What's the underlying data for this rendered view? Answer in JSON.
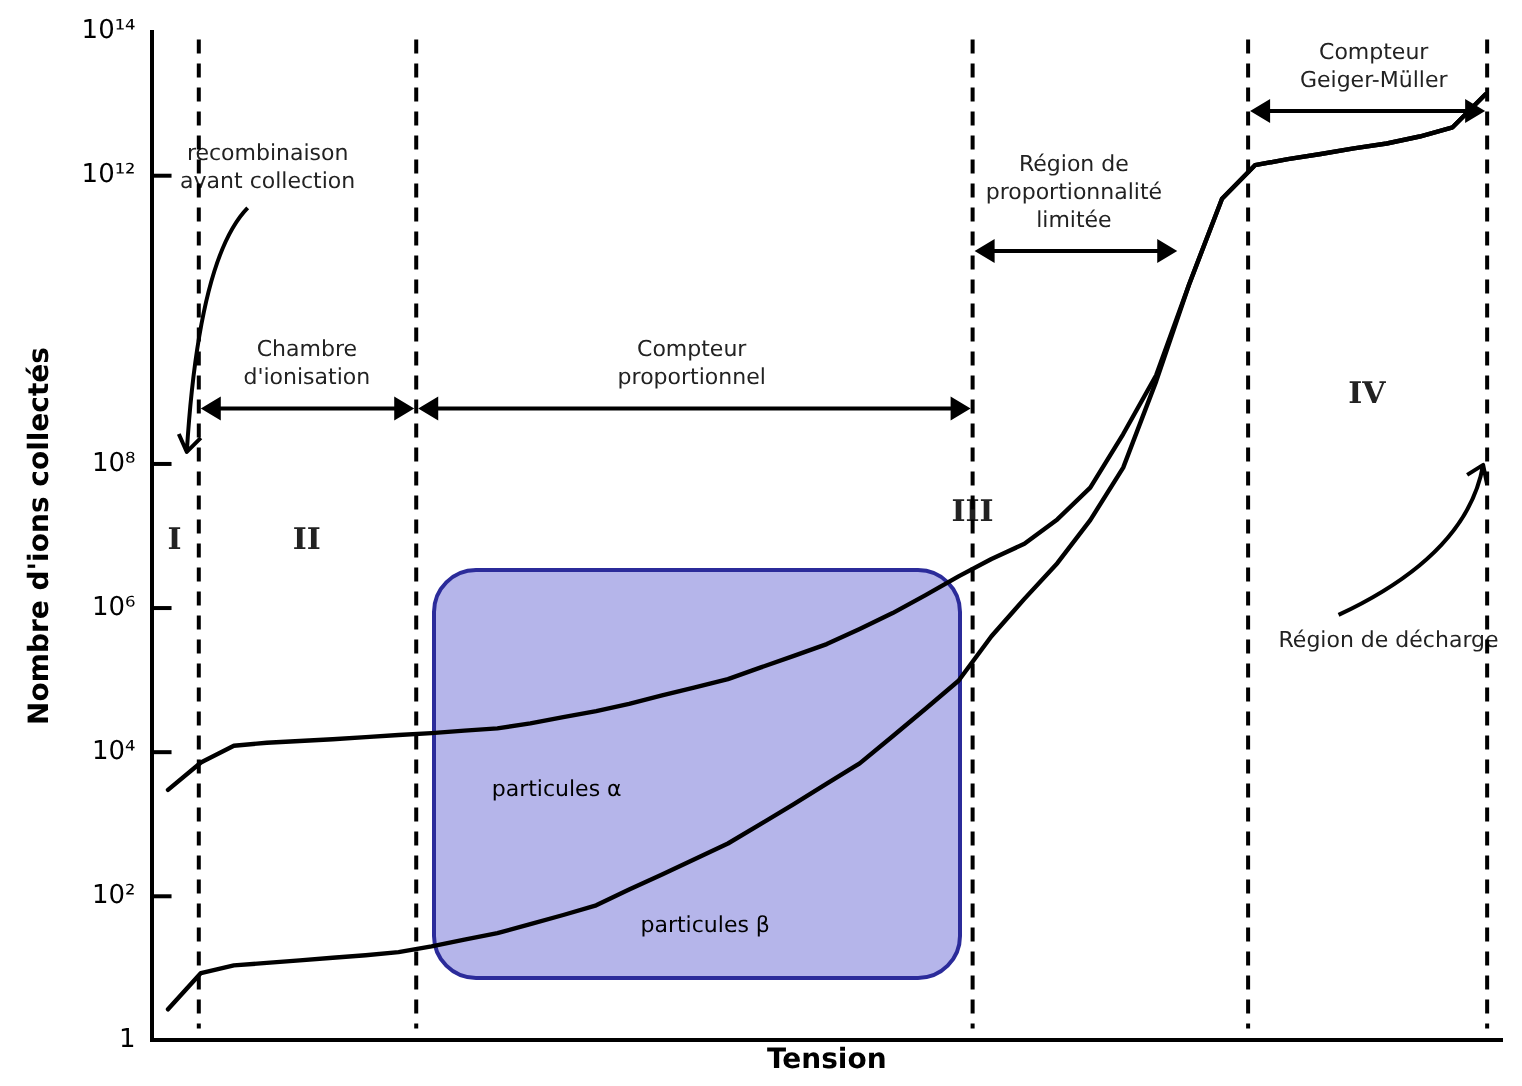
{
  "chart_data": {
    "type": "line",
    "xlabel": "Tension",
    "ylabel": "Nombre d'ions collectés",
    "categories": [
      null,
      null,
      null,
      null,
      null,
      null,
      null,
      null,
      null,
      null,
      null,
      null,
      null,
      null,
      null,
      null,
      null,
      null,
      null,
      null,
      null,
      null,
      null,
      null,
      null,
      null,
      null,
      null,
      null,
      null,
      null,
      null,
      null,
      null,
      null,
      null,
      null,
      null,
      null,
      null,
      null
    ],
    "ylim": [
      1,
      100000000000000.0
    ],
    "yticks": [
      {
        "value": 1,
        "label": "1"
      },
      {
        "value": 100,
        "label": "10²"
      },
      {
        "value": 10000,
        "label": "10⁴"
      },
      {
        "value": 1000000,
        "label": "10⁶"
      },
      {
        "value": 100000000,
        "label": "10⁸"
      },
      {
        "value": 1000000000000,
        "label": "10¹²"
      },
      {
        "value": 100000000000000,
        "label": "10¹⁴"
      }
    ],
    "log": "y",
    "grid": false,
    "legend": false,
    "tick_labels": "y",
    "marker": "none",
    "line_style": "solid",
    "series": [
      {
        "name": "particules α",
        "color": "#000000",
        "values": [
          3000,
          7200,
          12300,
          13500,
          14300,
          15100,
          16200,
          17300,
          18400,
          19900,
          21400,
          25100,
          30600,
          37200,
          46800,
          61200,
          79500,
          103000,
          150000,
          217000,
          316000,
          513000,
          851000,
          1510000,
          2750000,
          4800000,
          7800000,
          17000000,
          47000000,
          260000000,
          1700000000,
          31000000000,
          480000000000,
          1400000000000,
          1700000000000,
          2000000000000,
          2400000000000,
          2800000000000,
          3500000000000,
          4700000000000,
          13500000000000
        ]
      },
      {
        "name": "particules β",
        "color": "#000000",
        "values": [
          2.7,
          8.6,
          11,
          11.9,
          12.9,
          14,
          15.2,
          16.8,
          20.2,
          25,
          30.8,
          41,
          55,
          75,
          124,
          201,
          330,
          540,
          1010,
          1900,
          3660,
          7000,
          16600,
          40000,
          98000,
          407000,
          1340000,
          4200000,
          16600000,
          89000000,
          1400000000,
          31000000000,
          480000000000,
          1400000000000,
          1700000000000,
          2000000000000,
          2400000000000,
          2800000000000,
          3500000000000,
          4700000000000,
          13500000000000
        ]
      }
    ],
    "annotations": [
      "recombinaison avant collection",
      "Chambre d'ionisation",
      "Compteur proportionnel",
      "Région de proportionnalité limitée",
      "Compteur Geiger-Müller",
      "I",
      "II",
      "III",
      "IV",
      "Région de décharge"
    ]
  }
}
